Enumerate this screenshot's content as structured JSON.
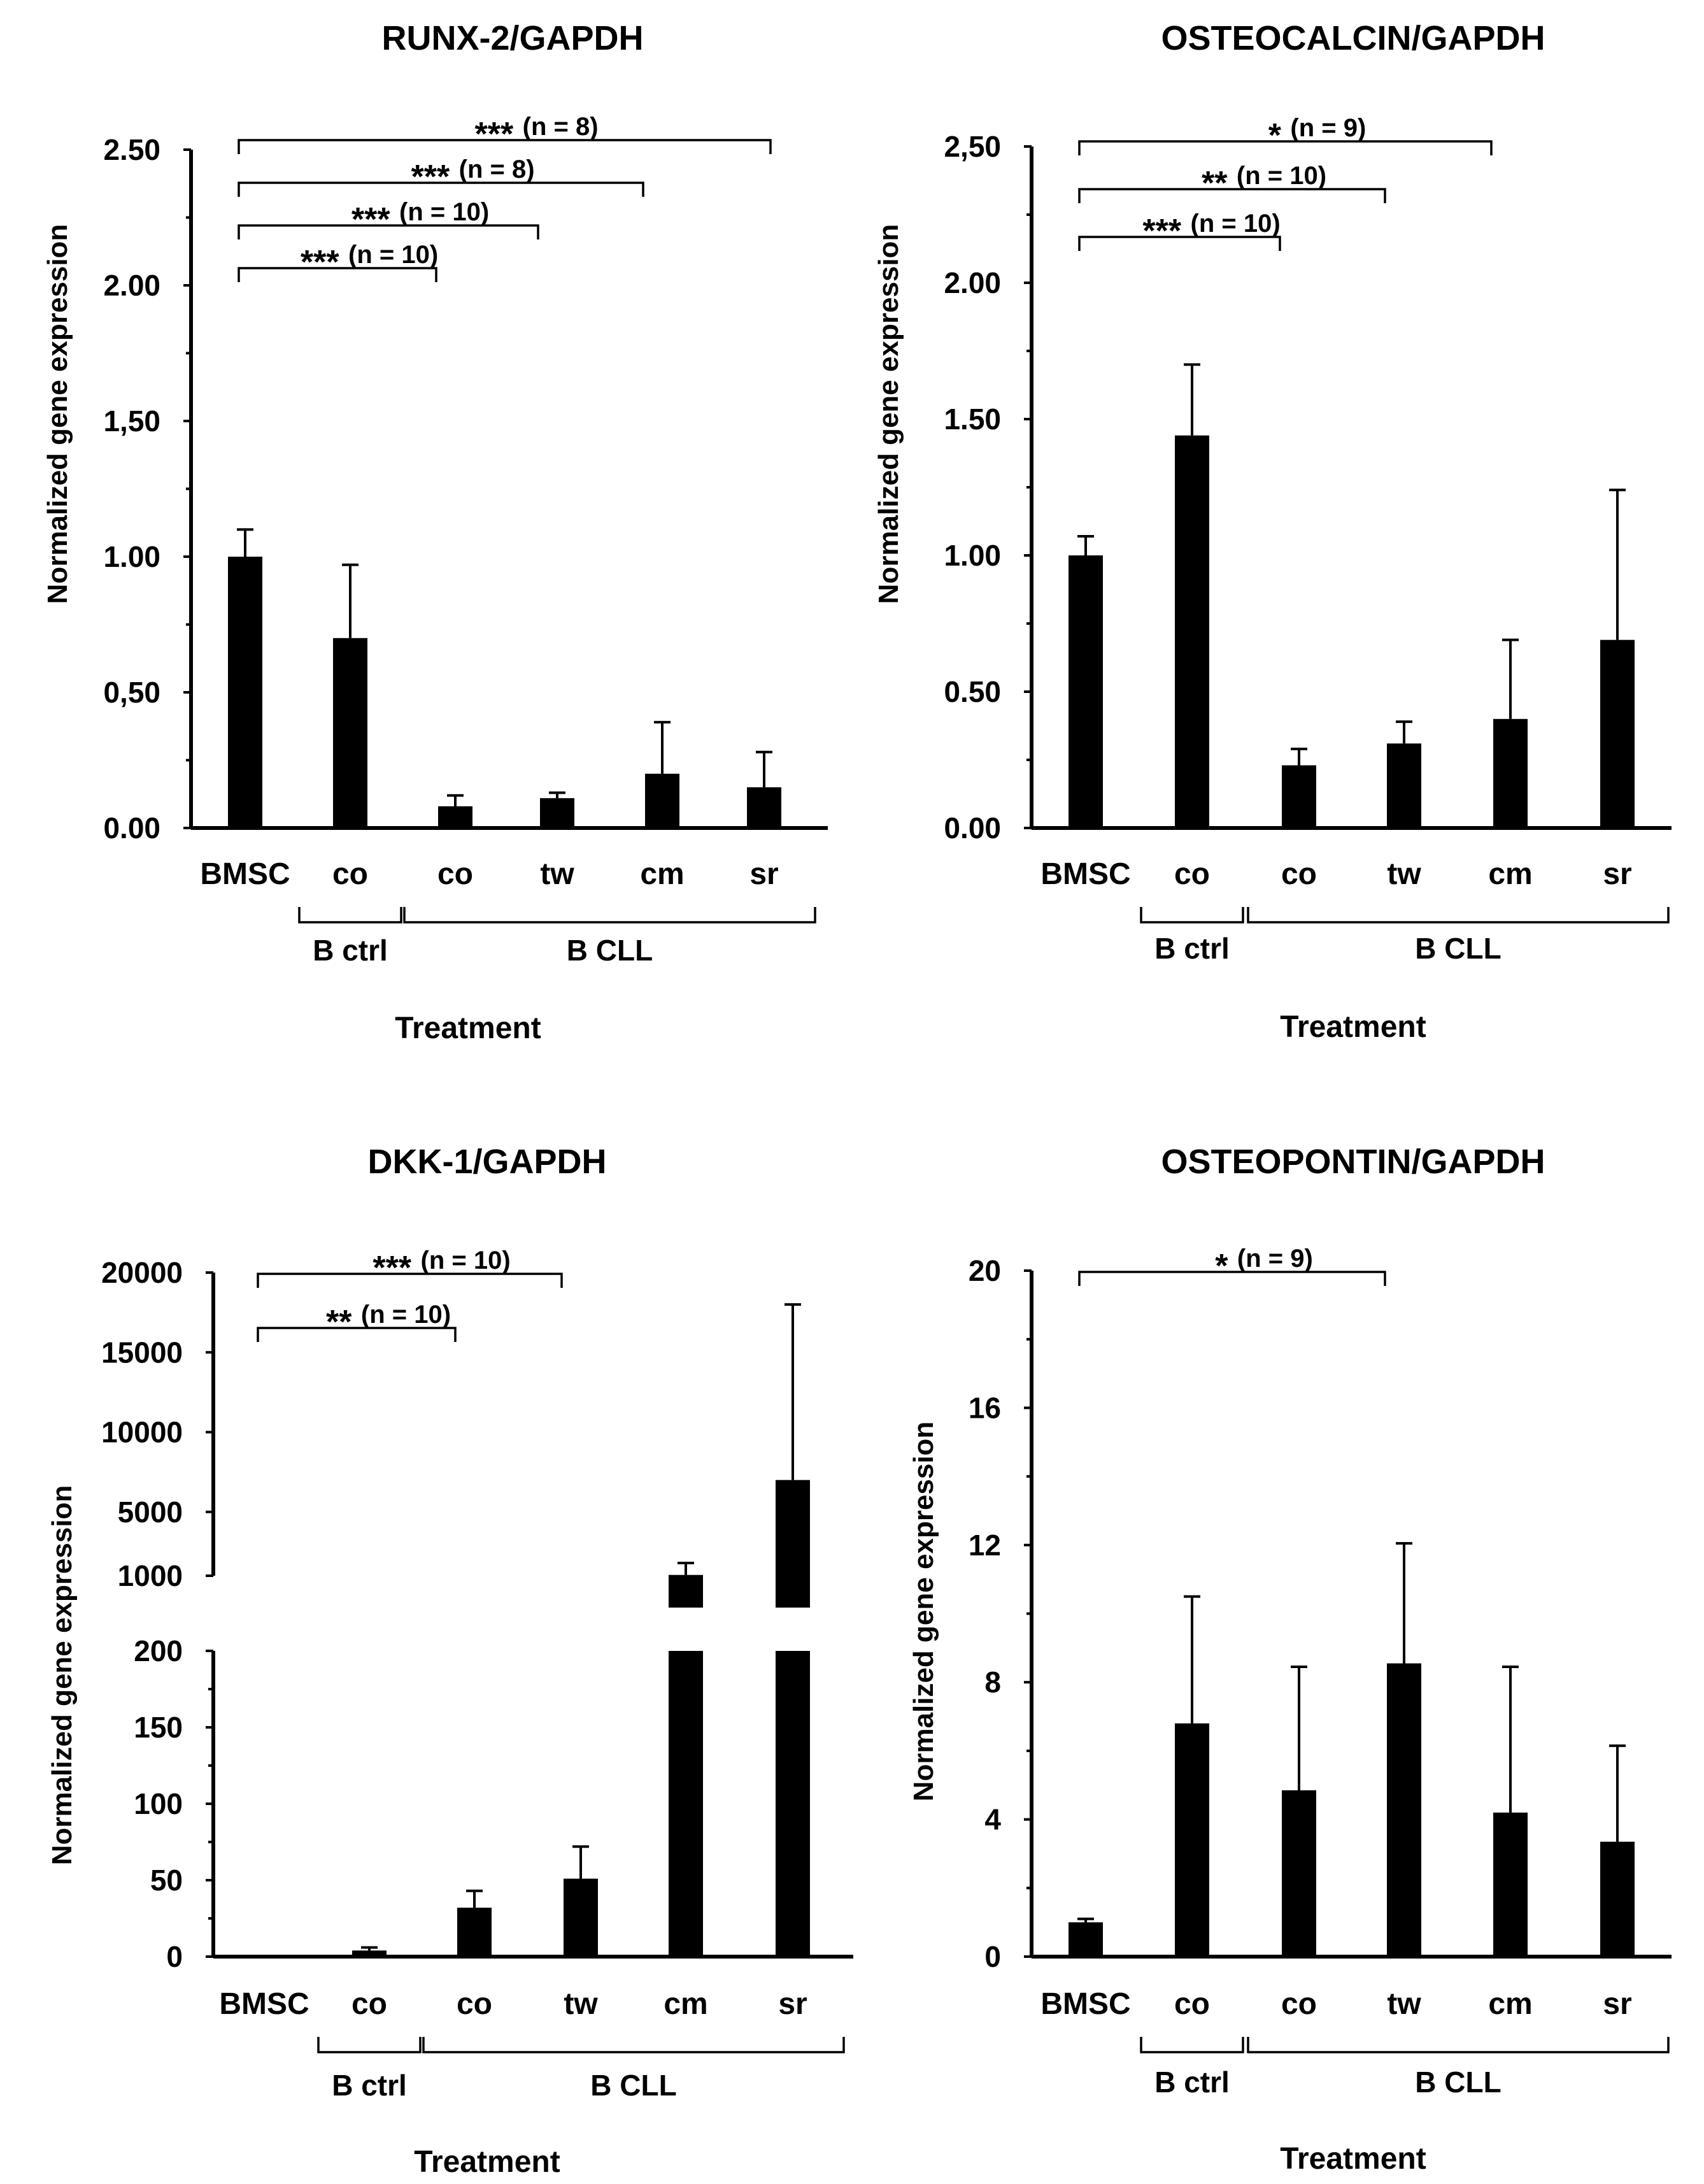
{
  "chart_data": [
    {
      "type": "bar",
      "title": "RUNX-2/GAPDH",
      "ylabel": "Normalized gene expression",
      "xlabel": "Treatment",
      "categories": [
        "BMSC",
        "co",
        "co",
        "tw",
        "cm",
        "sr"
      ],
      "groups": [
        {
          "label": "B ctrl",
          "categories": [
            1
          ]
        },
        {
          "label": "B CLL",
          "categories": [
            2,
            3,
            4,
            5
          ]
        }
      ],
      "values": [
        1.0,
        0.7,
        0.08,
        0.11,
        0.2,
        0.15
      ],
      "errors": [
        0.1,
        0.27,
        0.04,
        0.02,
        0.19,
        0.13
      ],
      "ylim": [
        0,
        2.5
      ],
      "yticks": [
        0,
        0.5,
        1.0,
        1.5,
        2.0,
        2.5
      ],
      "ytick_labels": [
        "0.00",
        "0,50",
        "1.00",
        "1,50",
        "2.00",
        "2.50"
      ],
      "significance": [
        {
          "from": 0,
          "to": 5,
          "stars": "***",
          "label": "(n = 8)"
        },
        {
          "from": 0,
          "to": 4,
          "stars": "***",
          "label": "(n = 8)"
        },
        {
          "from": 0,
          "to": 3,
          "stars": "***",
          "label": "(n = 10)"
        },
        {
          "from": 0,
          "to": 2,
          "stars": "***",
          "label": "(n = 10)"
        }
      ]
    },
    {
      "type": "bar",
      "title": "OSTEOCALCIN/GAPDH",
      "ylabel": "Normalized gene expression",
      "xlabel": "Treatment",
      "categories": [
        "BMSC",
        "co",
        "co",
        "tw",
        "cm",
        "sr"
      ],
      "groups": [
        {
          "label": "B ctrl",
          "categories": [
            1
          ]
        },
        {
          "label": "B CLL",
          "categories": [
            2,
            3,
            4,
            5
          ]
        }
      ],
      "values": [
        1.0,
        1.44,
        0.23,
        0.31,
        0.4,
        0.69
      ],
      "errors": [
        0.07,
        0.26,
        0.06,
        0.08,
        0.29,
        0.55
      ],
      "ylim": [
        0,
        2.5
      ],
      "yticks": [
        0,
        0.5,
        1.0,
        1.5,
        2.0,
        2.5
      ],
      "ytick_labels": [
        "0.00",
        "0.50",
        "1.00",
        "1.50",
        "2.00",
        "2,50"
      ],
      "significance": [
        {
          "from": 0,
          "to": 4,
          "stars": "*",
          "label": "(n = 9)"
        },
        {
          "from": 0,
          "to": 3,
          "stars": "**",
          "label": "(n = 10)"
        },
        {
          "from": 0,
          "to": 2,
          "stars": "***",
          "label": "(n = 10)"
        }
      ]
    },
    {
      "type": "bar",
      "title": "DKK-1/GAPDH",
      "ylabel": "Normalized gene expression",
      "xlabel": "Treatment",
      "categories": [
        "BMSC",
        "co",
        "co",
        "tw",
        "cm",
        "sr"
      ],
      "groups": [
        {
          "label": "B ctrl",
          "categories": [
            1
          ]
        },
        {
          "label": "B CLL",
          "categories": [
            2,
            3,
            4,
            5
          ]
        }
      ],
      "values": [
        1,
        4,
        32,
        51,
        1050,
        7000
      ],
      "errors": [
        0,
        2,
        11,
        21,
        750,
        11000
      ],
      "broken_axis": {
        "lower": {
          "ylim": [
            0,
            200
          ],
          "yticks": [
            0,
            50,
            100,
            150,
            200
          ]
        },
        "upper": {
          "ylim": [
            1000,
            20000
          ],
          "yticks": [
            1000,
            5000,
            10000,
            15000,
            20000
          ]
        }
      },
      "significance": [
        {
          "from": 0,
          "to": 3,
          "stars": "***",
          "label": "(n = 10)"
        },
        {
          "from": 0,
          "to": 2,
          "stars": "**",
          "label": "(n = 10)"
        }
      ]
    },
    {
      "type": "bar",
      "title": "OSTEOPONTIN/GAPDH",
      "ylabel": "Normalized gene expression",
      "xlabel": "Treatment",
      "categories": [
        "BMSC",
        "co",
        "co",
        "tw",
        "cm",
        "sr"
      ],
      "groups": [
        {
          "label": "B ctrl",
          "categories": [
            1
          ]
        },
        {
          "label": "B CLL",
          "categories": [
            2,
            3,
            4,
            5
          ]
        }
      ],
      "values": [
        1.0,
        6.8,
        4.85,
        8.55,
        4.2,
        3.35
      ],
      "errors": [
        0.1,
        3.7,
        3.6,
        3.5,
        4.25,
        2.8
      ],
      "ylim": [
        0,
        20
      ],
      "yticks": [
        0,
        4,
        8,
        12,
        16,
        20
      ],
      "ytick_labels": [
        "0",
        "4",
        "8",
        "12",
        "16",
        "20"
      ],
      "significance": [
        {
          "from": 0,
          "to": 3,
          "stars": "*",
          "label": "(n = 9)"
        }
      ]
    }
  ]
}
